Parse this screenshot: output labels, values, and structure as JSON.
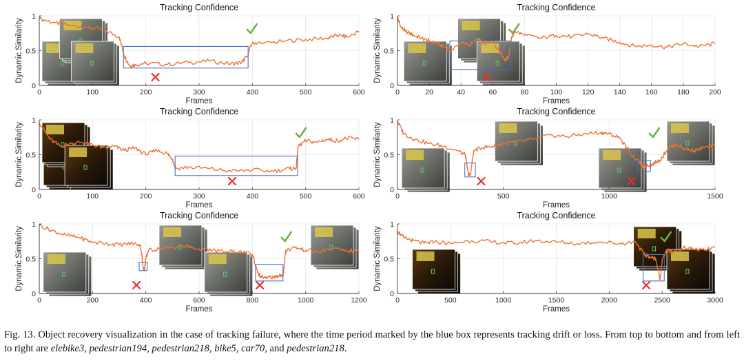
{
  "colors": {
    "line": "#ee7132",
    "box": "#4e6fc2",
    "cross": "#e0332b",
    "check": "#6ab33e",
    "grid": "#e6e6e6"
  },
  "icons": {
    "success": "check-icon",
    "failure": "cross-icon"
  },
  "caption": {
    "text": "Fig. 13.  Object recovery visualization in the case of tracking failure, where the time period marked by the blue box represents tracking drift or loss. From top to bottom and from left to right are ",
    "seqs": [
      "elebike3",
      "pedestrian194",
      "pedestrian218",
      "bike5",
      "car70",
      "pedestrian218"
    ],
    "sep": ", ",
    "last_sep": ", and ",
    "end": "."
  },
  "chart_data": [
    {
      "type": "line",
      "title": "Tracking Confidence",
      "xlabel": "Frames",
      "ylabel": "Dynamic Similarity",
      "xlim": [
        0,
        600
      ],
      "ylim": [
        0,
        1
      ],
      "xticks": [
        0,
        100,
        200,
        300,
        400,
        500,
        600
      ],
      "yticks": [
        0,
        0.5,
        1
      ],
      "grid": true,
      "series": [
        {
          "x": [
            0,
            30,
            60,
            90,
            120,
            150,
            160,
            170,
            180,
            200,
            240,
            280,
            320,
            360,
            380,
            390,
            400,
            420,
            460,
            500,
            540,
            560,
            580,
            600
          ],
          "y": [
            0.96,
            0.9,
            0.86,
            0.84,
            0.8,
            0.7,
            0.42,
            0.28,
            0.3,
            0.32,
            0.3,
            0.33,
            0.35,
            0.31,
            0.33,
            0.42,
            0.62,
            0.6,
            0.64,
            0.66,
            0.68,
            0.72,
            0.7,
            0.78
          ]
        }
      ],
      "failure_box": {
        "x": [
          158,
          392
        ],
        "y": [
          0.25,
          0.56
        ]
      },
      "cross_x": 218,
      "check_x": 398,
      "thumb_frames": [
        5,
        38,
        60
      ]
    },
    {
      "type": "line",
      "title": "Tracking Confidence",
      "xlabel": "Frames",
      "ylabel": "Dynamic Similarity",
      "xlim": [
        0,
        200
      ],
      "ylim": [
        0,
        1
      ],
      "xticks": [
        0,
        20,
        40,
        60,
        80,
        100,
        120,
        140,
        160,
        180,
        200
      ],
      "yticks": [
        0,
        0.5,
        1
      ],
      "grid": true,
      "series": [
        {
          "x": [
            0,
            2,
            5,
            10,
            15,
            20,
            25,
            30,
            34,
            40,
            45,
            50,
            55,
            60,
            64,
            68,
            70,
            72,
            74,
            80,
            90,
            100,
            110,
            120,
            130,
            140,
            150,
            160,
            170,
            180,
            190,
            200
          ],
          "y": [
            0.98,
            0.84,
            0.78,
            0.72,
            0.68,
            0.64,
            0.6,
            0.55,
            0.5,
            0.62,
            0.58,
            0.66,
            0.6,
            0.64,
            0.5,
            0.36,
            0.42,
            0.7,
            0.78,
            0.72,
            0.68,
            0.72,
            0.7,
            0.74,
            0.68,
            0.62,
            0.56,
            0.58,
            0.55,
            0.6,
            0.56,
            0.6
          ]
        }
      ],
      "failure_box": {
        "x": [
          33,
          71
        ],
        "y": [
          0.23,
          0.64
        ]
      },
      "cross_x": 56,
      "check_x": 73,
      "thumb_frames": [
        4,
        38,
        50
      ]
    },
    {
      "type": "line",
      "title": "Tracking Confidence",
      "xlabel": "Frames",
      "ylabel": "Dynamic Similarity",
      "xlim": [
        0,
        600
      ],
      "ylim": [
        0,
        1
      ],
      "xticks": [
        0,
        100,
        200,
        300,
        400,
        500,
        600
      ],
      "yticks": [
        0,
        0.5,
        1
      ],
      "grid": true,
      "series": [
        {
          "x": [
            0,
            20,
            40,
            60,
            80,
            100,
            120,
            140,
            160,
            180,
            200,
            220,
            240,
            250,
            256,
            280,
            320,
            360,
            400,
            440,
            470,
            482,
            486,
            500,
            520,
            540,
            560,
            580,
            600
          ],
          "y": [
            0.96,
            0.72,
            0.62,
            0.66,
            0.68,
            0.64,
            0.6,
            0.62,
            0.56,
            0.6,
            0.5,
            0.56,
            0.52,
            0.44,
            0.3,
            0.32,
            0.3,
            0.26,
            0.28,
            0.26,
            0.3,
            0.3,
            0.62,
            0.7,
            0.68,
            0.72,
            0.7,
            0.74,
            0.72
          ]
        }
      ],
      "failure_box": {
        "x": [
          255,
          485
        ],
        "y": [
          0.2,
          0.48
        ]
      },
      "cross_x": 362,
      "check_x": 490,
      "thumb_frames": [
        8,
        5,
        48
      ]
    },
    {
      "type": "line",
      "title": "Tracking Confidence",
      "xlabel": "Frames",
      "ylabel": "Dynamic Similarity",
      "xlim": [
        0,
        1500
      ],
      "ylim": [
        0,
        1
      ],
      "xticks": [
        0,
        500,
        1000,
        1500
      ],
      "yticks": [
        0,
        0.5,
        1
      ],
      "grid": true,
      "series": [
        {
          "x": [
            0,
            30,
            80,
            150,
            220,
            280,
            320,
            335,
            345,
            360,
            400,
            450,
            500,
            560,
            640,
            720,
            800,
            880,
            960,
            1000,
            1050,
            1100,
            1140,
            1160,
            1180,
            1200,
            1240,
            1280,
            1320,
            1360,
            1400,
            1450,
            1500
          ],
          "y": [
            0.98,
            0.8,
            0.72,
            0.66,
            0.62,
            0.56,
            0.5,
            0.2,
            0.22,
            0.56,
            0.6,
            0.62,
            0.66,
            0.68,
            0.72,
            0.78,
            0.76,
            0.8,
            0.82,
            0.8,
            0.74,
            0.52,
            0.4,
            0.32,
            0.34,
            0.36,
            0.42,
            0.6,
            0.64,
            0.58,
            0.56,
            0.6,
            0.62
          ]
        }
      ],
      "failure_box": {
        "x": [
          318,
          368
        ],
        "y": [
          0.18,
          0.38
        ]
      },
      "second_box": {
        "x": [
          1135,
          1195
        ],
        "y": [
          0.26,
          0.42
        ]
      },
      "cross_x": 395,
      "cross2_x": 1105,
      "check_x": 1210,
      "thumb_frames": [
        20,
        460,
        950,
        1310
      ]
    },
    {
      "type": "line",
      "title": "Tracking Confidence",
      "xlabel": "Frames",
      "ylabel": "Dynamic Similarity",
      "xlim": [
        0,
        1200
      ],
      "ylim": [
        0,
        1
      ],
      "xticks": [
        0,
        200,
        400,
        600,
        800,
        1000,
        1200
      ],
      "yticks": [
        0,
        0.5,
        1
      ],
      "grid": true,
      "series": [
        {
          "x": [
            0,
            50,
            100,
            150,
            200,
            250,
            300,
            350,
            380,
            390,
            395,
            400,
            410,
            450,
            500,
            550,
            600,
            650,
            700,
            750,
            800,
            820,
            830,
            850,
            880,
            900,
            915,
            925,
            960,
            1000,
            1050,
            1100,
            1150,
            1200
          ],
          "y": [
            0.98,
            0.9,
            0.84,
            0.8,
            0.74,
            0.72,
            0.7,
            0.72,
            0.7,
            0.38,
            0.34,
            0.5,
            0.62,
            0.64,
            0.66,
            0.68,
            0.64,
            0.62,
            0.6,
            0.6,
            0.56,
            0.3,
            0.25,
            0.22,
            0.24,
            0.26,
            0.24,
            0.62,
            0.66,
            0.62,
            0.6,
            0.64,
            0.62,
            0.6
          ]
        }
      ],
      "failure_box": {
        "x": [
          375,
          405
        ],
        "y": [
          0.33,
          0.45
        ]
      },
      "second_box": {
        "x": [
          812,
          915
        ],
        "y": [
          0.18,
          0.42
        ]
      },
      "cross_x": 365,
      "cross2_x": 828,
      "check_x": 925,
      "thumb_frames": [
        15,
        450,
        620,
        1040
      ]
    },
    {
      "type": "line",
      "title": "Tracking Confidence",
      "xlabel": "Frames",
      "ylabel": "Dynamic Similarity",
      "xlim": [
        0,
        3000
      ],
      "ylim": [
        0,
        1
      ],
      "xticks": [
        0,
        500,
        1000,
        1500,
        2000,
        2500,
        3000
      ],
      "yticks": [
        0,
        0.5,
        1
      ],
      "grid": true,
      "series": [
        {
          "x": [
            0,
            60,
            150,
            250,
            350,
            500,
            700,
            900,
            1100,
            1300,
            1500,
            1700,
            1900,
            2100,
            2250,
            2330,
            2360,
            2400,
            2440,
            2480,
            2500,
            2540,
            2600,
            2700,
            2800,
            2900,
            3000
          ],
          "y": [
            0.9,
            0.8,
            0.76,
            0.72,
            0.74,
            0.72,
            0.76,
            0.74,
            0.72,
            0.76,
            0.74,
            0.72,
            0.74,
            0.72,
            0.74,
            0.56,
            0.54,
            0.52,
            0.5,
            0.2,
            0.48,
            0.62,
            0.6,
            0.66,
            0.64,
            0.62,
            0.66
          ]
        }
      ],
      "failure_box": {
        "x": [
          2320,
          2520
        ],
        "y": [
          0.18,
          0.56
        ]
      },
      "cross_x": 2350,
      "check_x": 2530,
      "thumb_frames": [
        140,
        2230,
        2700
      ]
    }
  ]
}
